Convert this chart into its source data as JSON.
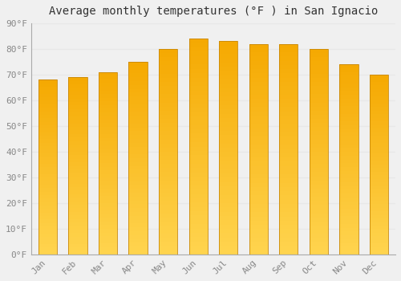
{
  "months": [
    "Jan",
    "Feb",
    "Mar",
    "Apr",
    "May",
    "Jun",
    "Jul",
    "Aug",
    "Sep",
    "Oct",
    "Nov",
    "Dec"
  ],
  "values": [
    68,
    69,
    71,
    75,
    80,
    84,
    83,
    82,
    82,
    80,
    74,
    70
  ],
  "title": "Average monthly temperatures (°F ) in San Ignacio",
  "ylim": [
    0,
    90
  ],
  "yticks": [
    0,
    10,
    20,
    30,
    40,
    50,
    60,
    70,
    80,
    90
  ],
  "ytick_labels": [
    "0°F",
    "10°F",
    "20°F",
    "30°F",
    "40°F",
    "50°F",
    "60°F",
    "70°F",
    "80°F",
    "90°F"
  ],
  "background_color": "#f0f0f0",
  "grid_color": "#e8e8e8",
  "bar_color_bottom": "#FFD44E",
  "bar_color_top": "#F5A800",
  "bar_edge_color": "#C8880A",
  "title_fontsize": 10,
  "tick_fontsize": 8,
  "font_family": "monospace",
  "tick_color": "#888888"
}
